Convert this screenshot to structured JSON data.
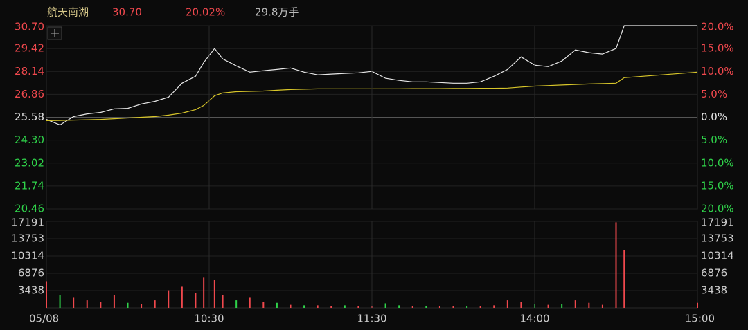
{
  "chart_data": [
    {
      "type": "line",
      "header": {
        "name": "航天南湖",
        "price": "30.70",
        "change": "20.02%",
        "volume": "29.8万手"
      },
      "x": [
        0,
        5,
        10,
        15,
        20,
        25,
        30,
        35,
        40,
        45,
        50,
        55,
        58,
        62,
        65,
        70,
        75,
        80,
        85,
        90,
        95,
        100,
        105,
        110,
        115,
        120,
        125,
        130,
        135,
        140,
        145,
        150,
        155,
        160,
        165,
        170,
        175,
        180,
        185,
        190,
        195,
        200,
        205,
        210,
        213,
        240
      ],
      "xlim": [
        0,
        240
      ],
      "ylim": [
        20.46,
        30.7
      ],
      "yticks": [
        {
          "value": 30.7,
          "label": "30.70"
        },
        {
          "value": 29.42,
          "label": "29.42"
        },
        {
          "value": 28.14,
          "label": "28.14"
        },
        {
          "value": 26.86,
          "label": "26.86"
        },
        {
          "value": 25.58,
          "label": "25.58"
        },
        {
          "value": 24.3,
          "label": "24.30"
        },
        {
          "value": 23.02,
          "label": "23.02"
        },
        {
          "value": 21.74,
          "label": "21.74"
        },
        {
          "value": 20.46,
          "label": "20.46"
        }
      ],
      "y2lim": [
        -20,
        20
      ],
      "y2ticks": [
        {
          "value": 20,
          "label": "20.0%"
        },
        {
          "value": 15,
          "label": "15.0%"
        },
        {
          "value": 10,
          "label": "10.0%"
        },
        {
          "value": 5,
          "label": "5.0%"
        },
        {
          "value": 0,
          "label": "0.0%"
        },
        {
          "value": -5,
          "label": "5.0%"
        },
        {
          "value": -10,
          "label": "10.0%"
        },
        {
          "value": -15,
          "label": "15.0%"
        },
        {
          "value": -20,
          "label": "20.0%"
        }
      ],
      "up_color": "#f0484d",
      "down_color": "#2fd24a",
      "flat_color": "#e6e6e6",
      "series": [
        {
          "color": "#e8e8e8",
          "values": [
            25.46,
            25.15,
            25.62,
            25.77,
            25.85,
            26.05,
            26.08,
            26.32,
            26.47,
            26.7,
            27.48,
            27.87,
            28.64,
            29.42,
            28.84,
            28.45,
            28.1,
            28.18,
            28.25,
            28.33,
            28.1,
            27.95,
            27.99,
            28.03,
            28.06,
            28.14,
            27.76,
            27.64,
            27.56,
            27.56,
            27.52,
            27.48,
            27.48,
            27.56,
            27.87,
            28.25,
            28.95,
            28.49,
            28.41,
            28.72,
            29.34,
            29.19,
            29.11,
            29.42,
            30.7,
            30.7
          ]
        },
        {
          "color": "#d8c62a",
          "values": [
            25.39,
            25.4,
            25.42,
            25.44,
            25.46,
            25.5,
            25.54,
            25.58,
            25.62,
            25.7,
            25.81,
            26.01,
            26.24,
            26.78,
            26.94,
            27.01,
            27.03,
            27.05,
            27.09,
            27.13,
            27.15,
            27.17,
            27.17,
            27.17,
            27.17,
            27.17,
            27.17,
            27.17,
            27.18,
            27.18,
            27.18,
            27.19,
            27.19,
            27.2,
            27.2,
            27.21,
            27.27,
            27.32,
            27.35,
            27.38,
            27.41,
            27.44,
            27.46,
            27.48,
            27.79,
            28.1
          ]
        }
      ]
    },
    {
      "type": "bar",
      "x": [
        0,
        5,
        10,
        15,
        20,
        25,
        30,
        35,
        40,
        45,
        50,
        55,
        58,
        62,
        65,
        70,
        75,
        80,
        85,
        90,
        95,
        100,
        105,
        110,
        115,
        120,
        125,
        130,
        135,
        140,
        145,
        150,
        155,
        160,
        165,
        170,
        175,
        180,
        185,
        190,
        195,
        200,
        205,
        210,
        213,
        240
      ],
      "xlim": [
        0,
        240
      ],
      "xticks": [
        {
          "value": 0,
          "label": "05/08"
        },
        {
          "value": 60,
          "label": "10:30"
        },
        {
          "value": 120,
          "label": "11:30"
        },
        {
          "value": 180,
          "label": "14:00"
        },
        {
          "value": 240,
          "label": "15:00"
        }
      ],
      "ylim": [
        0,
        17191
      ],
      "yticks": [
        3438,
        6876,
        10314,
        13753,
        17191
      ],
      "series": [
        {
          "values": [
            5300,
            2500,
            2000,
            1500,
            1200,
            2500,
            1000,
            800,
            1500,
            3500,
            4200,
            3000,
            6000,
            5500,
            2500,
            1500,
            2000,
            1200,
            1000,
            600,
            500,
            500,
            400,
            500,
            400,
            400,
            900,
            500,
            400,
            300,
            300,
            300,
            300,
            400,
            500,
            1500,
            1200,
            700,
            600,
            800,
            1500,
            1000,
            600,
            17000,
            11500,
            1000
          ],
          "colors": [
            "#f0484d",
            "#2fd24a",
            "#f0484d",
            "#f0484d",
            "#f0484d",
            "#f0484d",
            "#2fd24a",
            "#f0484d",
            "#f0484d",
            "#f0484d",
            "#f0484d",
            "#f0484d",
            "#f0484d",
            "#f0484d",
            "#f0484d",
            "#2fd24a",
            "#f0484d",
            "#f0484d",
            "#2fd24a",
            "#f0484d",
            "#2fd24a",
            "#f0484d",
            "#f0484d",
            "#2fd24a",
            "#f0484d",
            "#f0484d",
            "#2fd24a",
            "#2fd24a",
            "#f0484d",
            "#2fd24a",
            "#f0484d",
            "#f0484d",
            "#2fd24a",
            "#f0484d",
            "#f0484d",
            "#f0484d",
            "#f0484d",
            "#2fd24a",
            "#f0484d",
            "#2fd24a",
            "#f0484d",
            "#f0484d",
            "#f0484d",
            "#f0484d",
            "#f0484d",
            "#f0484d"
          ]
        }
      ]
    }
  ]
}
